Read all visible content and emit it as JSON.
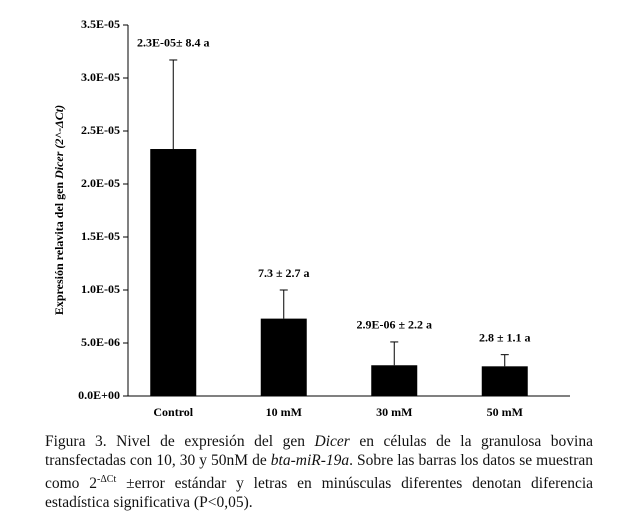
{
  "chart_data": {
    "type": "bar",
    "y_label": [
      {
        "text": "Expresión relavita del gen "
      },
      {
        "text": "Dicer",
        "italic": true
      },
      {
        "text": " (2^-ΔCt)",
        "italic": true
      }
    ],
    "categories": [
      "Control",
      "10 mM",
      "30 mM",
      "50 mM"
    ],
    "values": [
      2.33e-05,
      7.3e-06,
      2.9e-06,
      2.8e-06
    ],
    "errors": [
      8.4e-06,
      2.7e-06,
      2.2e-06,
      1.1e-06
    ],
    "value_labels": [
      "2.3E-05± 8.4 a",
      "7.3 ± 2.7 a",
      "2.9E-06 ± 2.2  a",
      "2.8 ± 1.1 a"
    ],
    "color": "#000000",
    "ylim": [
      0,
      3.5e-05
    ],
    "yticks": [
      {
        "value": 0,
        "label": "0.0E+00"
      },
      {
        "value": 5e-06,
        "label": "5.0E-06"
      },
      {
        "value": 1e-05,
        "label": "1.0E-05"
      },
      {
        "value": 1.5e-05,
        "label": "1.5E-05"
      },
      {
        "value": 2e-05,
        "label": "2.0E-05"
      },
      {
        "value": 2.5e-05,
        "label": "2.5E-05"
      },
      {
        "value": 3e-05,
        "label": "3.0E-05"
      },
      {
        "value": 3.5e-05,
        "label": "3.5E-05"
      }
    ],
    "grid": false
  },
  "caption": [
    {
      "text": "Figura 3. Nivel de expresión del gen "
    },
    {
      "text": "Dicer",
      "italic": true
    },
    {
      "text": " en células de la granulosa bovina transfectadas con 10, 30 y 50nM de "
    },
    {
      "text": "bta-miR-19a",
      "italic": true
    },
    {
      "text": ". Sobre las barras los datos se muestran como 2"
    },
    {
      "text": "-ΔCt",
      "sup": true
    },
    {
      "text": " ±error estándar y letras en minúsculas diferentes denotan diferencia estadística significativa (P<0,05)."
    }
  ]
}
